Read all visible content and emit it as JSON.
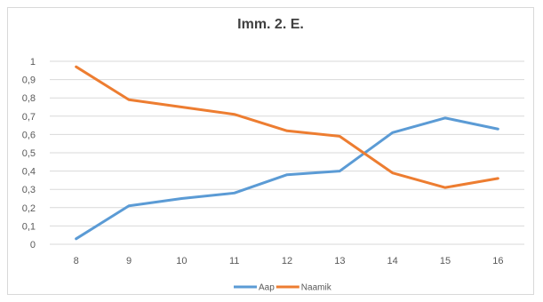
{
  "chart_data": {
    "type": "line",
    "title": "Imm. 2. E.",
    "categories": [
      "8",
      "9",
      "10",
      "11",
      "12",
      "13",
      "14",
      "15",
      "16"
    ],
    "series": [
      {
        "name": "Aap",
        "color": "#5b9bd5",
        "values": [
          0.03,
          0.21,
          0.25,
          0.28,
          0.38,
          0.4,
          0.61,
          0.69,
          0.63
        ]
      },
      {
        "name": "Naamik",
        "color": "#ed7d31",
        "values": [
          0.97,
          0.79,
          0.75,
          0.71,
          0.62,
          0.59,
          0.39,
          0.31,
          0.36
        ]
      }
    ],
    "ylim": [
      0,
      1
    ],
    "yticks": [
      "0",
      "0,1",
      "0,2",
      "0,3",
      "0,4",
      "0,5",
      "0,6",
      "0,7",
      "0,8",
      "0,9",
      "1"
    ],
    "grid": true,
    "legend": "bottom"
  }
}
